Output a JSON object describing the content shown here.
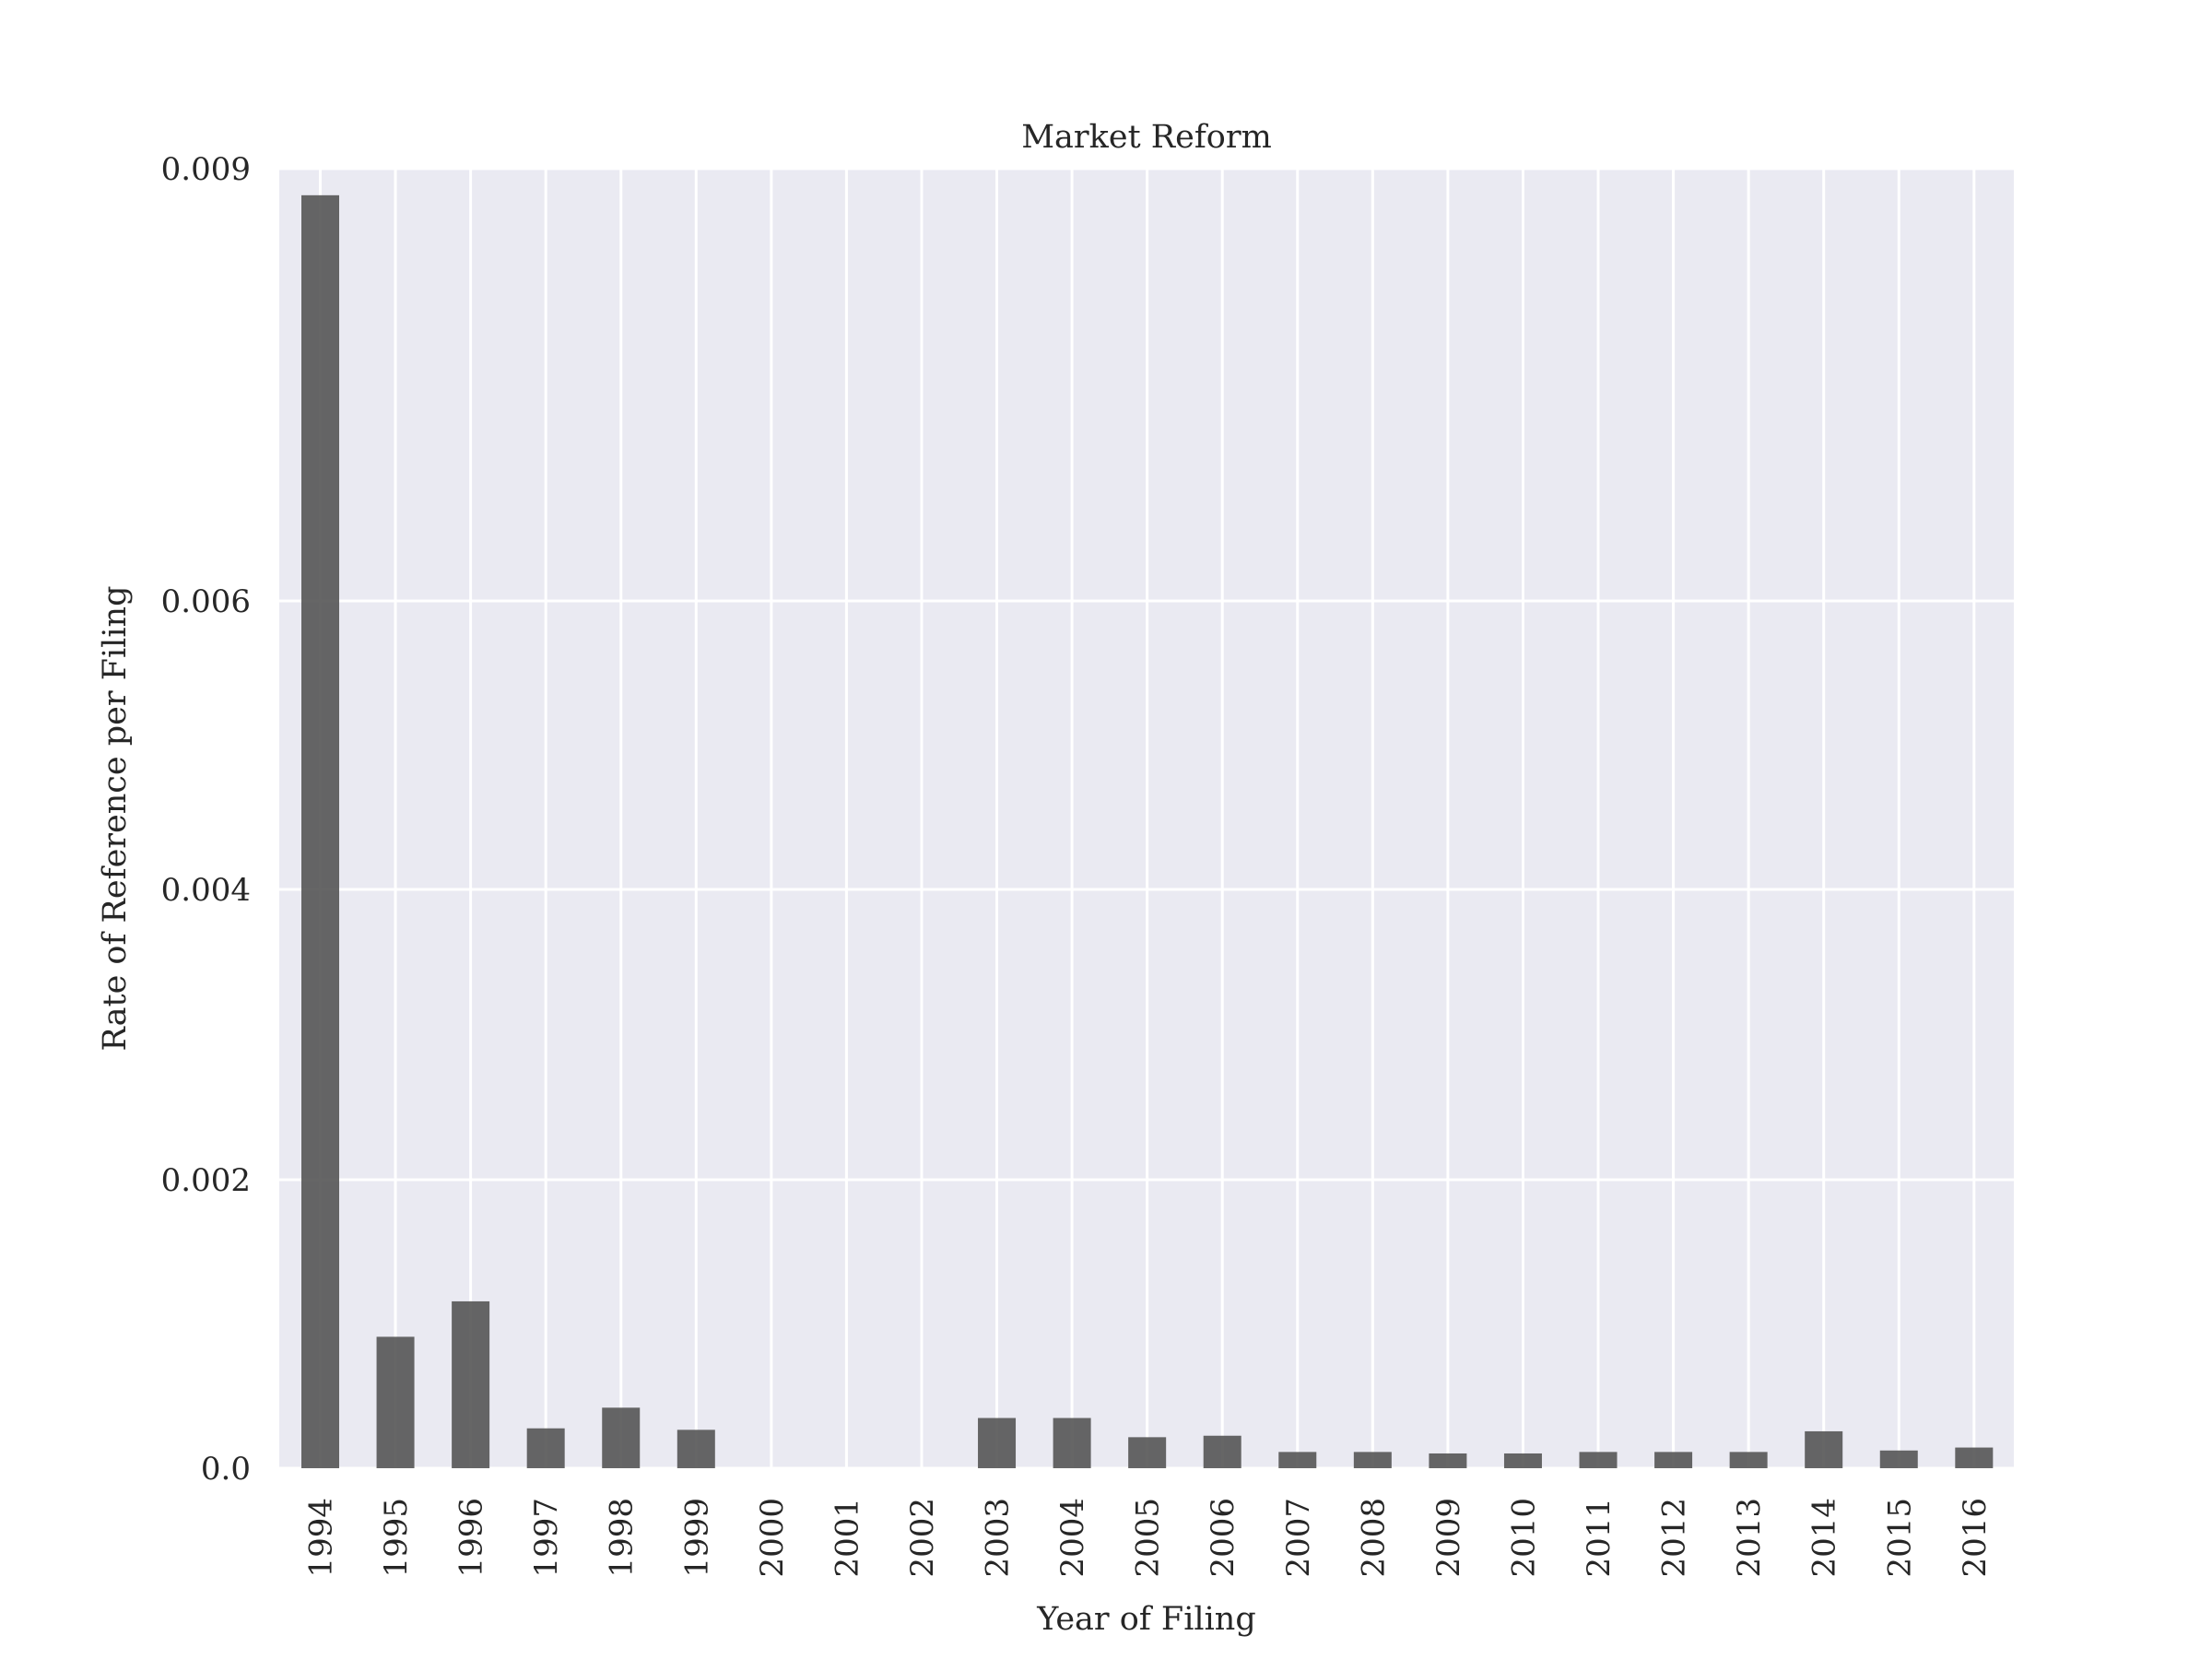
{
  "chart_data": {
    "type": "bar",
    "title": "Market Reform",
    "xlabel": "Year of Filing",
    "ylabel": "Rate of Reference per Filing",
    "categories": [
      "1994",
      "1995",
      "1996",
      "1997",
      "1998",
      "1999",
      "2000",
      "2001",
      "2002",
      "2003",
      "2004",
      "2005",
      "2006",
      "2007",
      "2008",
      "2009",
      "2010",
      "2011",
      "2012",
      "2013",
      "2014",
      "2015",
      "2016"
    ],
    "values": [
      0.00862,
      0.00089,
      0.00113,
      0.00027,
      0.00041,
      0.00026,
      0.0,
      0.0,
      0.0,
      0.00034,
      0.00034,
      0.00021,
      0.00022,
      0.00011,
      0.00011,
      0.0001,
      0.0001,
      0.00011,
      0.00011,
      0.00011,
      0.00025,
      0.00012,
      0.00014
    ],
    "yticks": [
      0.0,
      0.002,
      0.004,
      0.006,
      0.009
    ],
    "ytick_labels": [
      "0.0",
      "0.002",
      "0.004",
      "0.006",
      "0.009"
    ],
    "ylim": [
      0,
      0.009
    ],
    "grid": true,
    "colors": {
      "bar": "#555555",
      "plot_background": "#eaeaf2",
      "grid": "#ffffff",
      "text": "#262626"
    }
  }
}
